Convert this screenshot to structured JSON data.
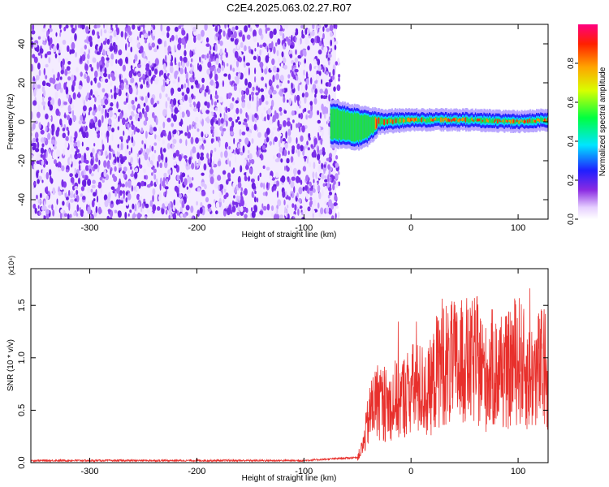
{
  "chart_data": [
    {
      "type": "heatmap",
      "title": "C2E4.2025.063.02.27.R07",
      "xlabel": "Height of straight line (km)",
      "ylabel": "Frequency (Hz)",
      "xlim": [
        -355,
        128
      ],
      "ylim": [
        -50,
        50
      ],
      "xticks": [
        -300,
        -200,
        -100,
        0,
        100
      ],
      "yticks": [
        -40,
        -20,
        0,
        20,
        40
      ],
      "colormap": "rainbow (white → violet → blue → cyan → green → yellow → red)",
      "colorbar": {
        "label": "Normalized spectral amplitude",
        "range": [
          0,
          1
        ],
        "ticks": [
          0.0,
          0.2,
          0.4,
          0.6,
          0.8
        ]
      },
      "regions": [
        {
          "name": "noise",
          "x_range": [
            -355,
            -70
          ],
          "y_range": [
            -50,
            50
          ],
          "amplitude": [
            0.0,
            0.15
          ],
          "color": "#7a2ee8"
        },
        {
          "name": "signal",
          "x_range": [
            -75,
            128
          ],
          "y_center_hz": 1,
          "half_width_hz": 3,
          "peak_amplitude": 1.0,
          "color": "#e8352e"
        }
      ],
      "signal_track": [
        {
          "x": -75,
          "f_hi": 6,
          "f_lo": -8
        },
        {
          "x": -60,
          "f_hi": 4,
          "f_lo": -8
        },
        {
          "x": -50,
          "f_hi": 3,
          "f_lo": -9
        },
        {
          "x": -40,
          "f_hi": 2,
          "f_lo": -7
        },
        {
          "x": -30,
          "f_hi": 1,
          "f_lo": -1
        },
        {
          "x": 0,
          "f_hi": 1,
          "f_lo": 1
        },
        {
          "x": 50,
          "f_hi": 1,
          "f_lo": 1
        },
        {
          "x": 100,
          "f_hi": 0,
          "f_lo": 0
        },
        {
          "x": 128,
          "f_hi": 1,
          "f_lo": 1
        }
      ],
      "grid": false
    },
    {
      "type": "line",
      "xlabel": "Height of straight line (km)",
      "ylabel": "SNR (10 * v/v)",
      "y_multiplier": "(x10⁴)",
      "xlim": [
        -355,
        128
      ],
      "ylim": [
        0,
        18500
      ],
      "xticks": [
        -300,
        -200,
        -100,
        0,
        100
      ],
      "yticks": [
        0.0,
        0.5,
        1.0,
        1.5
      ],
      "series": [
        {
          "color": "#e8302c",
          "x": [
            -355,
            -300,
            -200,
            -100,
            -50,
            -45,
            -40,
            -35,
            -30,
            -25,
            -20,
            -15,
            -10,
            -5,
            0,
            5,
            10,
            15,
            20,
            25,
            30,
            35,
            40,
            45,
            50,
            55,
            60,
            65,
            70,
            75,
            80,
            85,
            90,
            95,
            100,
            105,
            110,
            115,
            120,
            128
          ],
          "y": [
            200,
            200,
            200,
            200,
            500,
            1500,
            4000,
            5500,
            6000,
            5500,
            5500,
            6000,
            6000,
            6500,
            7000,
            7000,
            7000,
            6500,
            7500,
            9000,
            10000,
            9000,
            9500,
            9000,
            10000,
            9000,
            10000,
            9000,
            8000,
            9000,
            8500,
            9000,
            8500,
            9500,
            10000,
            9000,
            8000,
            8500,
            9000,
            9000
          ]
        }
      ],
      "grid": false
    }
  ]
}
